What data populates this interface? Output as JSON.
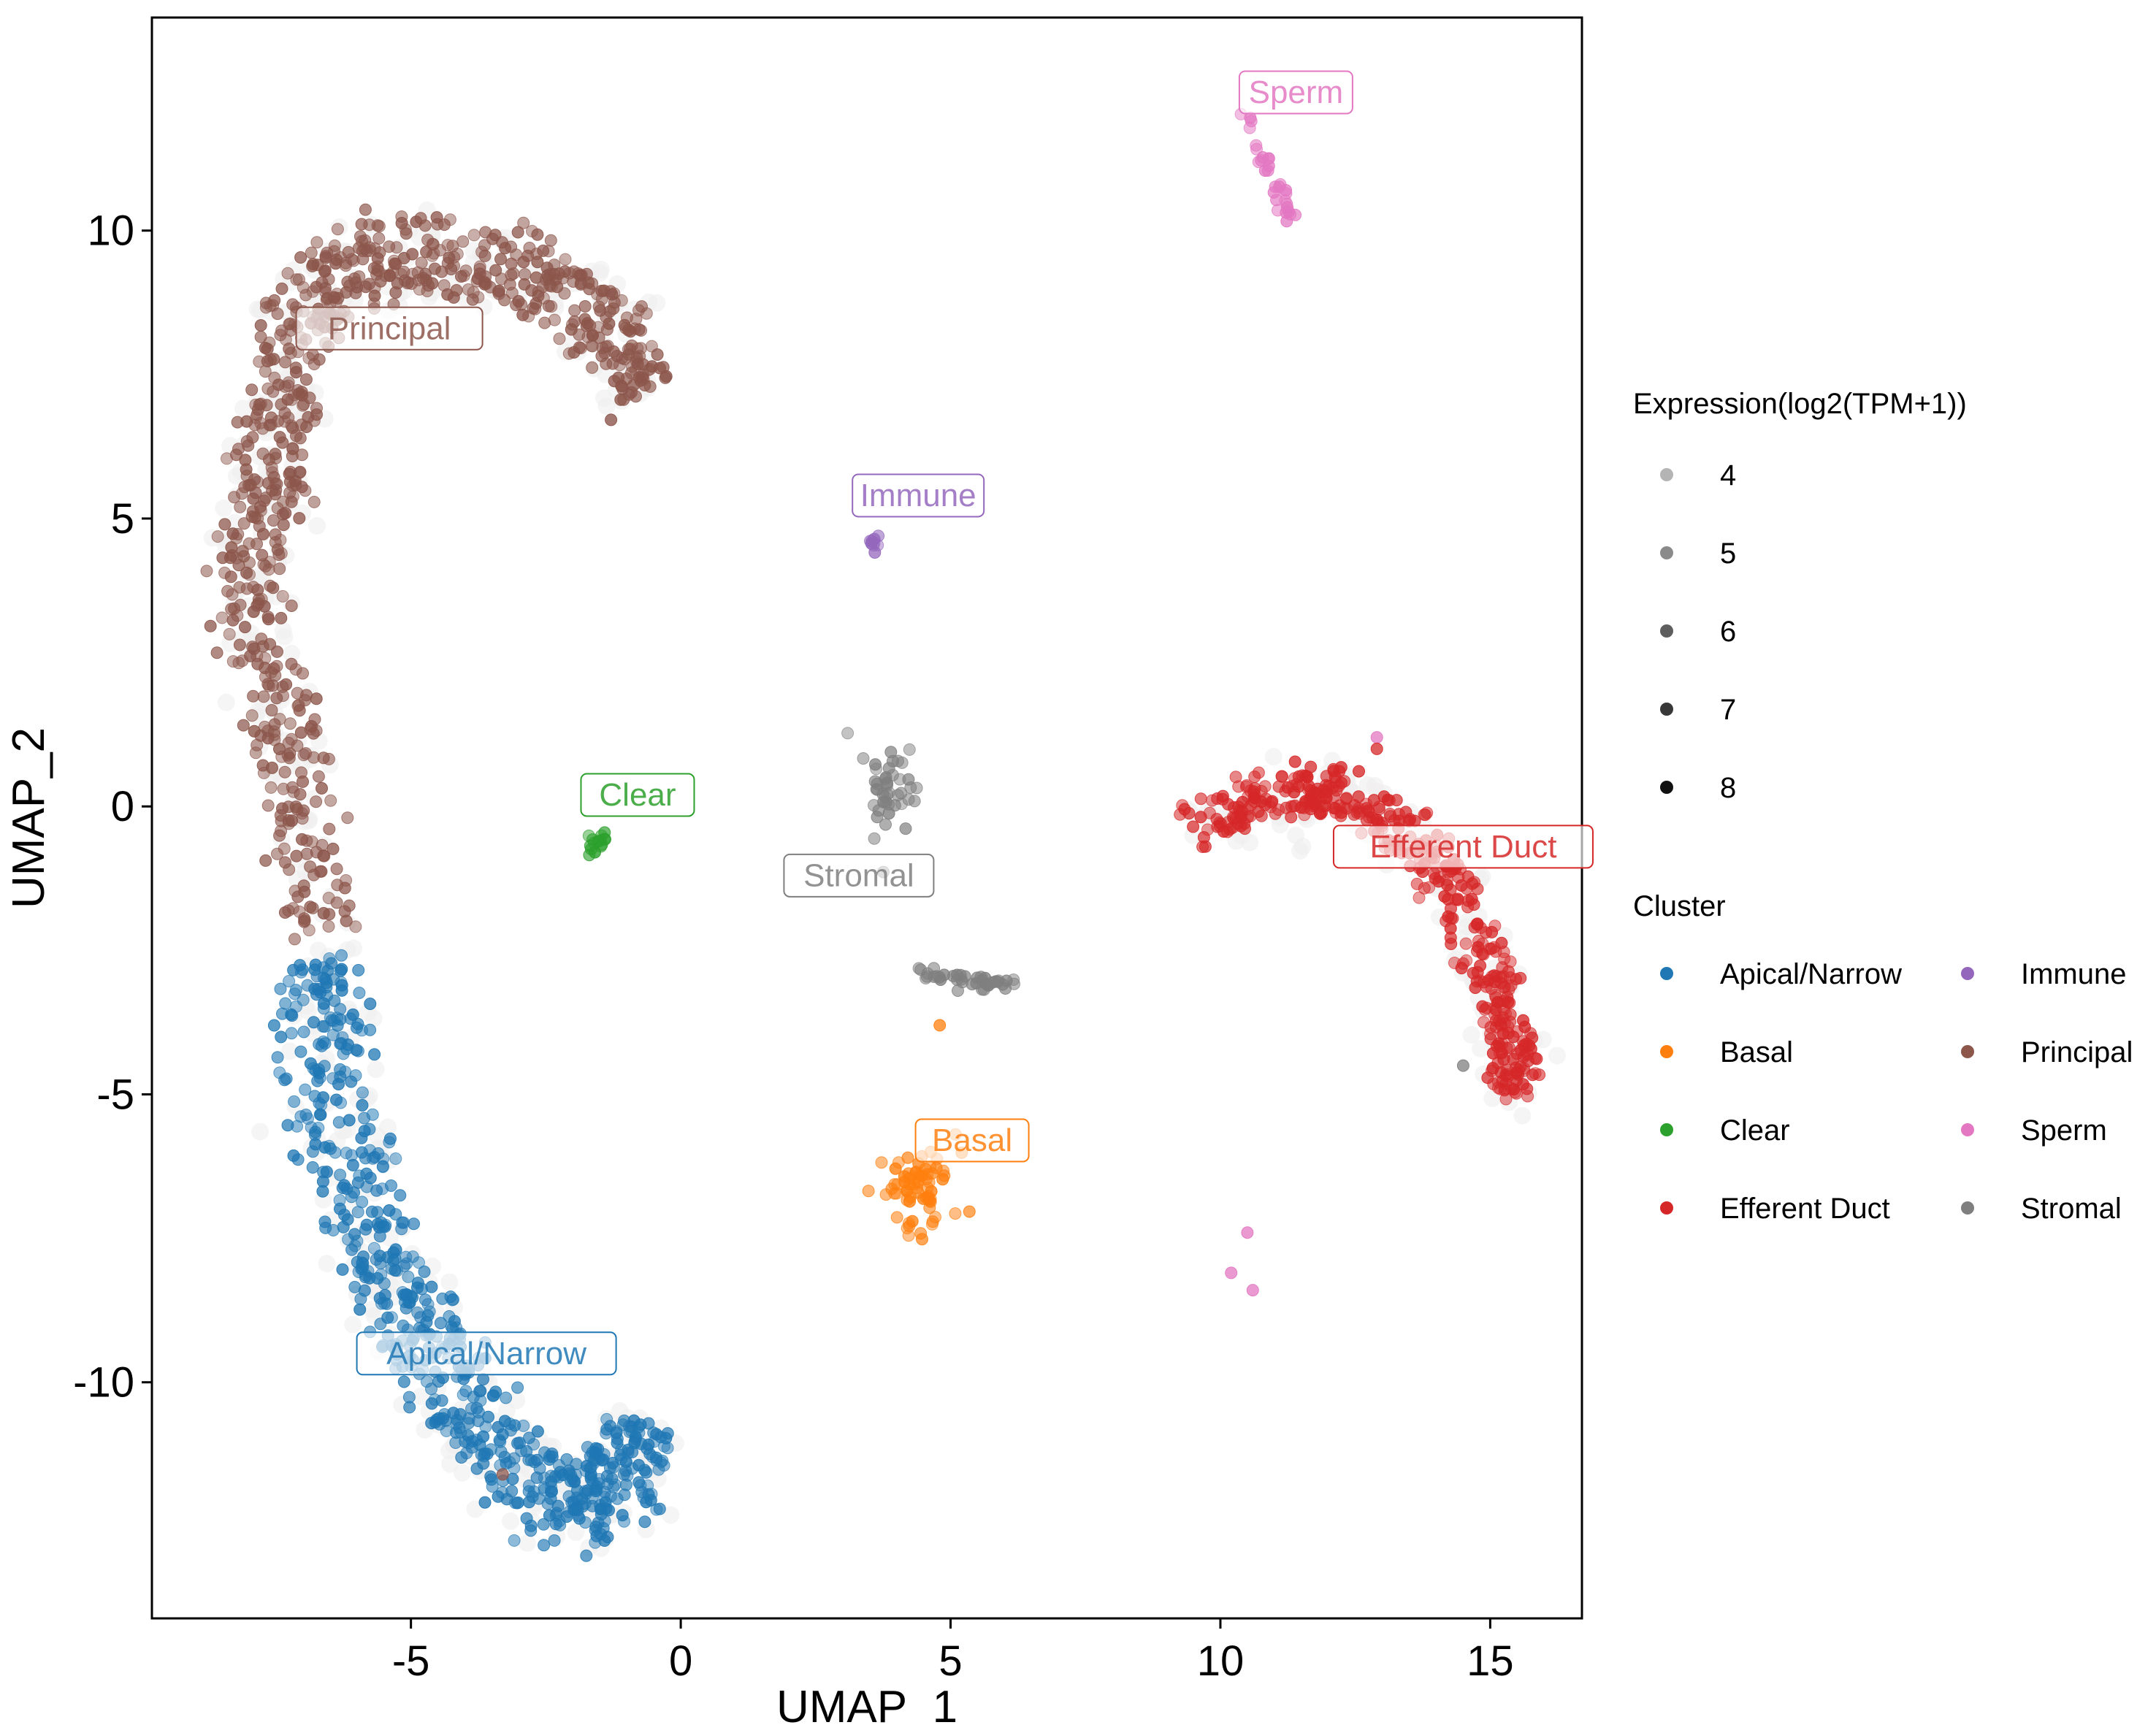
{
  "chart_data": {
    "type": "scatter",
    "title": "",
    "xlabel": "UMAP_1",
    "ylabel": "UMAP_2",
    "xlim": [
      -9.8,
      16.7
    ],
    "ylim": [
      -14.1,
      13.7
    ],
    "x_ticks": [
      -5,
      0,
      5,
      10,
      15
    ],
    "y_ticks": [
      10,
      5,
      0,
      -5,
      -10
    ],
    "x_tick_labels": [
      "-5",
      "0",
      "5",
      "10",
      "15"
    ],
    "y_tick_labels": [
      "10",
      "5",
      "0",
      "-5",
      "-10"
    ],
    "grid": false,
    "legend_position": "right",
    "size_legend": {
      "title": "Expression(log2(TPM+1))",
      "levels": [
        4,
        5,
        6,
        7,
        8
      ],
      "labels": [
        "4",
        "5",
        "6",
        "7",
        "8"
      ],
      "colors": [
        "#b4b4b4",
        "#8a8a8a",
        "#5e5e5e",
        "#383838",
        "#111111"
      ]
    },
    "cluster_legend": {
      "title": "Cluster",
      "entries": [
        {
          "name": "Apical/Narrow",
          "color": "#1f77b4"
        },
        {
          "name": "Basal",
          "color": "#ff7f0e"
        },
        {
          "name": "Clear",
          "color": "#2ca02c"
        },
        {
          "name": "Efferent Duct",
          "color": "#d62728"
        },
        {
          "name": "Immune",
          "color": "#9467bd"
        },
        {
          "name": "Principal",
          "color": "#8c564b"
        },
        {
          "name": "Sperm",
          "color": "#e377c2"
        },
        {
          "name": "Stromal",
          "color": "#7f7f7f"
        }
      ]
    },
    "cluster_labels": [
      {
        "text": "Principal",
        "x": -5.4,
        "y": 8.3,
        "color": "#8c564b"
      },
      {
        "text": "Sperm",
        "x": 11.4,
        "y": 12.4,
        "color": "#e377c2"
      },
      {
        "text": "Immune",
        "x": 4.4,
        "y": 5.4,
        "color": "#9467bd"
      },
      {
        "text": "Clear",
        "x": -0.8,
        "y": 0.2,
        "color": "#2ca02c"
      },
      {
        "text": "Stromal",
        "x": 3.3,
        "y": -1.2,
        "color": "#7f7f7f"
      },
      {
        "text": "Efferent Duct",
        "x": 14.5,
        "y": -0.7,
        "color": "#d62728"
      },
      {
        "text": "Basal",
        "x": 5.4,
        "y": -5.8,
        "color": "#ff7f0e"
      },
      {
        "text": "Apical/Narrow",
        "x": -3.6,
        "y": -9.5,
        "color": "#1f77b4"
      }
    ],
    "clusters": [
      {
        "name": "Principal",
        "color": "#8c564b",
        "count": 750,
        "width": 0.85,
        "spine": [
          [
            -6.7,
            -2.2
          ],
          [
            -7.0,
            -1.0
          ],
          [
            -7.1,
            0.3
          ],
          [
            -7.4,
            1.5
          ],
          [
            -7.9,
            2.5
          ],
          [
            -8.1,
            3.6
          ],
          [
            -7.8,
            4.6
          ],
          [
            -7.6,
            5.6
          ],
          [
            -7.4,
            6.5
          ],
          [
            -7.3,
            7.4
          ],
          [
            -7.1,
            8.3
          ],
          [
            -6.8,
            9.0
          ],
          [
            -6.0,
            9.4
          ],
          [
            -5.2,
            9.6
          ],
          [
            -4.4,
            9.6
          ],
          [
            -3.4,
            9.4
          ],
          [
            -2.5,
            9.2
          ],
          [
            -1.8,
            8.7
          ],
          [
            -1.3,
            8.3
          ],
          [
            -0.9,
            7.7
          ],
          [
            -0.6,
            7.3
          ]
        ]
      },
      {
        "name": "Apical/Narrow",
        "color": "#1f77b4",
        "count": 650,
        "width": 0.95,
        "spine": [
          [
            -6.9,
            -2.6
          ],
          [
            -6.7,
            -3.8
          ],
          [
            -6.5,
            -5.0
          ],
          [
            -6.1,
            -6.3
          ],
          [
            -5.7,
            -7.4
          ],
          [
            -5.2,
            -8.4
          ],
          [
            -4.7,
            -9.3
          ],
          [
            -4.1,
            -10.2
          ],
          [
            -3.5,
            -11.0
          ],
          [
            -2.8,
            -11.7
          ],
          [
            -2.0,
            -12.2
          ],
          [
            -1.4,
            -12.1
          ],
          [
            -1.0,
            -11.5
          ],
          [
            -0.9,
            -10.7
          ]
        ]
      },
      {
        "name": "Efferent Duct",
        "color": "#d62728",
        "count": 430,
        "width": 0.5,
        "spine": [
          [
            9.5,
            -0.5
          ],
          [
            10.2,
            0.0
          ],
          [
            11.0,
            0.2
          ],
          [
            11.8,
            0.3
          ],
          [
            12.6,
            0.1
          ],
          [
            13.4,
            -0.3
          ],
          [
            14.0,
            -0.9
          ],
          [
            14.5,
            -1.7
          ],
          [
            14.8,
            -2.5
          ],
          [
            15.1,
            -3.2
          ],
          [
            15.3,
            -3.9
          ],
          [
            15.5,
            -4.6
          ],
          [
            15.4,
            -5.0
          ]
        ]
      },
      {
        "name": "Basal",
        "color": "#ff7f0e",
        "blob": [
          4.5,
          -6.6,
          0.35,
          0.35
        ],
        "count": 70
      },
      {
        "name": "Stromal",
        "color": "#7f7f7f",
        "blob": [
          3.9,
          0.3,
          0.25,
          0.45
        ],
        "count": 45
      },
      {
        "name": "Stromal",
        "color": "#7f7f7f",
        "segment": [
          [
            4.5,
            -2.9
          ],
          [
            6.2,
            -3.1
          ]
        ],
        "count": 40
      },
      {
        "name": "Sperm",
        "color": "#e377c2",
        "segment": [
          [
            10.3,
            12.2
          ],
          [
            11.3,
            10.3
          ]
        ],
        "count": 30
      },
      {
        "name": "Immune",
        "color": "#9467bd",
        "blob": [
          3.6,
          4.6,
          0.05,
          0.07
        ],
        "count": 10
      },
      {
        "name": "Clear",
        "color": "#2ca02c",
        "segment": [
          [
            -1.8,
            -0.8
          ],
          [
            -1.4,
            -0.5
          ]
        ],
        "count": 15
      }
    ],
    "outliers": [
      {
        "name": "Basal",
        "x": 4.8,
        "y": -3.8
      },
      {
        "name": "Sperm",
        "x": 10.5,
        "y": -7.4
      },
      {
        "name": "Sperm",
        "x": 10.2,
        "y": -8.1
      },
      {
        "name": "Sperm",
        "x": 10.6,
        "y": -8.4
      },
      {
        "name": "Sperm",
        "x": 12.9,
        "y": 1.2
      },
      {
        "name": "Efferent Duct",
        "x": 12.9,
        "y": 1.0
      },
      {
        "name": "Stromal",
        "x": 14.5,
        "y": -4.5
      },
      {
        "name": "Principal",
        "x": -3.3,
        "y": -11.6
      }
    ]
  }
}
